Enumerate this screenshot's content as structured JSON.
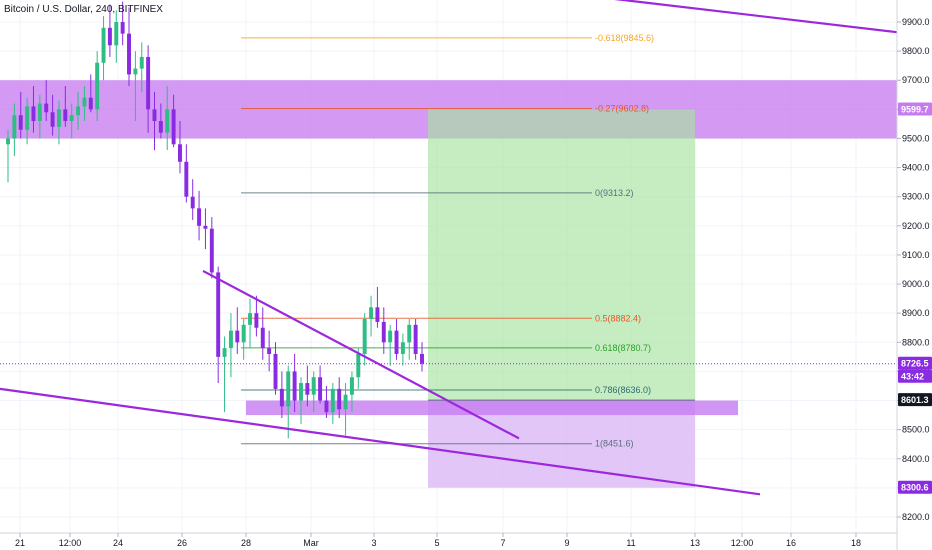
{
  "header": {
    "title": "Bitcoin / U.S. Dollar, 240, BITFINEX"
  },
  "colors": {
    "up": "#2ebd85",
    "down": "#8a2be2",
    "purple_line": "#9c27dd",
    "purple_zone": "#c67cf0",
    "target_zone": "#a8e4a0",
    "stop_zone": "#d9b3f5",
    "fib_orange": "#f5a623",
    "fib_red": "#e5582b",
    "fib_gray": "#5a6f7a",
    "fib_green": "#2ca02c",
    "fib_teal": "#2e6b6f",
    "price_line": "#8a2be2"
  },
  "chart_data": {
    "type": "candlestick",
    "title": "Bitcoin / U.S. Dollar, 240, BITFINEX",
    "y_axis": {
      "ticks": [
        9900,
        9800,
        9700,
        9600,
        9500,
        9400,
        9300,
        9200,
        9100,
        9000,
        8900,
        8800,
        8700,
        8600,
        8500,
        8400,
        8300,
        8200
      ],
      "tick_labels": [
        "9900.0",
        "9800.0",
        "9700.0",
        "9600.0",
        "9500.0",
        "9400.0",
        "9300.0",
        "9200.0",
        "9100.0",
        "9000.0",
        "8900.0",
        "8800.0",
        "8700.0",
        "8600.0",
        "8500.0",
        "8400.0",
        "8300.0",
        "8200.0"
      ],
      "range": [
        8150,
        9980
      ]
    },
    "x_axis": {
      "tick_labels": [
        "21",
        "12:00",
        "24",
        "26",
        "28",
        "Mar",
        "3",
        "5",
        "7",
        "9",
        "11",
        "13",
        "12:00",
        "16",
        "18"
      ]
    },
    "price_tags": [
      {
        "label": "9599.7",
        "value": 9599.7
      },
      {
        "label": "8726.5",
        "value": 8726.5
      },
      {
        "label": "43:42",
        "value": 8726.5
      },
      {
        "label": "8601.3",
        "value": 8601.3
      },
      {
        "label": "8300.6",
        "value": 8300.6
      }
    ],
    "fib_levels": [
      {
        "label": "-0.618(9845.6)",
        "value": 9845.6
      },
      {
        "label": "-0.27(9602.8)",
        "value": 9602.8
      },
      {
        "label": "0(9313.2)",
        "value": 9313.2
      },
      {
        "label": "0.5(8882.4)",
        "value": 8882.4
      },
      {
        "label": "0.618(8780.7)",
        "value": 8780.7
      },
      {
        "label": "0.786(8636.0)",
        "value": 8636.0
      },
      {
        "label": "1(8451.6)",
        "value": 8451.6
      }
    ],
    "zones": [
      {
        "name": "resistance",
        "from": 9500,
        "to": 9700
      },
      {
        "name": "support",
        "from": 8550,
        "to": 8600
      },
      {
        "name": "target",
        "from": 8601.3,
        "to": 9599.7
      },
      {
        "name": "stop",
        "from": 8300.6,
        "to": 8601.3
      }
    ],
    "last_price": 8726.5,
    "candles": [
      [
        9480,
        9530,
        9350,
        9500
      ],
      [
        9500,
        9620,
        9440,
        9580
      ],
      [
        9580,
        9660,
        9500,
        9530
      ],
      [
        9530,
        9640,
        9480,
        9610
      ],
      [
        9610,
        9680,
        9520,
        9560
      ],
      [
        9560,
        9650,
        9500,
        9620
      ],
      [
        9620,
        9700,
        9560,
        9590
      ],
      [
        9590,
        9650,
        9510,
        9540
      ],
      [
        9540,
        9630,
        9480,
        9600
      ],
      [
        9600,
        9680,
        9540,
        9560
      ],
      [
        9560,
        9620,
        9500,
        9580
      ],
      [
        9580,
        9660,
        9530,
        9610
      ],
      [
        9610,
        9680,
        9560,
        9640
      ],
      [
        9640,
        9720,
        9590,
        9600
      ],
      [
        9600,
        9800,
        9560,
        9760
      ],
      [
        9760,
        9920,
        9700,
        9880
      ],
      [
        9880,
        9960,
        9780,
        9820
      ],
      [
        9820,
        9940,
        9760,
        9900
      ],
      [
        9900,
        9970,
        9820,
        9860
      ],
      [
        9860,
        9950,
        9680,
        9720
      ],
      [
        9720,
        9800,
        9560,
        9740
      ],
      [
        9740,
        9830,
        9660,
        9780
      ],
      [
        9780,
        9820,
        9520,
        9600
      ],
      [
        9600,
        9660,
        9460,
        9560
      ],
      [
        9560,
        9620,
        9500,
        9520
      ],
      [
        9520,
        9680,
        9460,
        9600
      ],
      [
        9600,
        9650,
        9470,
        9480
      ],
      [
        9480,
        9560,
        9380,
        9420
      ],
      [
        9420,
        9480,
        9280,
        9300
      ],
      [
        9300,
        9360,
        9220,
        9260
      ],
      [
        9260,
        9320,
        9150,
        9200
      ],
      [
        9200,
        9260,
        9120,
        9190
      ],
      [
        9190,
        9230,
        9020,
        9040
      ],
      [
        9040,
        9060,
        8660,
        8750
      ],
      [
        8750,
        8820,
        8560,
        8780
      ],
      [
        8780,
        8900,
        8680,
        8840
      ],
      [
        8840,
        8920,
        8760,
        8800
      ],
      [
        8800,
        8880,
        8740,
        8860
      ],
      [
        8860,
        8950,
        8780,
        8900
      ],
      [
        8900,
        8960,
        8820,
        8850
      ],
      [
        8850,
        8920,
        8740,
        8780
      ],
      [
        8780,
        8840,
        8700,
        8760
      ],
      [
        8760,
        8800,
        8620,
        8640
      ],
      [
        8640,
        8700,
        8540,
        8580
      ],
      [
        8580,
        8720,
        8470,
        8700
      ],
      [
        8700,
        8760,
        8560,
        8600
      ],
      [
        8600,
        8680,
        8520,
        8660
      ],
      [
        8660,
        8720,
        8580,
        8620
      ],
      [
        8620,
        8700,
        8560,
        8680
      ],
      [
        8680,
        8720,
        8590,
        8600
      ],
      [
        8600,
        8650,
        8540,
        8560
      ],
      [
        8560,
        8660,
        8520,
        8640
      ],
      [
        8640,
        8680,
        8540,
        8570
      ],
      [
        8570,
        8660,
        8480,
        8620
      ],
      [
        8620,
        8700,
        8560,
        8680
      ],
      [
        8680,
        8780,
        8640,
        8760
      ],
      [
        8760,
        8900,
        8720,
        8880
      ],
      [
        8880,
        8960,
        8820,
        8920
      ],
      [
        8920,
        8990,
        8850,
        8870
      ],
      [
        8870,
        8920,
        8760,
        8800
      ],
      [
        8800,
        8860,
        8720,
        8840
      ],
      [
        8840,
        8880,
        8740,
        8760
      ],
      [
        8760,
        8830,
        8720,
        8800
      ],
      [
        8800,
        8880,
        8740,
        8860
      ],
      [
        8860,
        8880,
        8740,
        8760
      ],
      [
        8760,
        8800,
        8700,
        8726.5
      ]
    ]
  }
}
